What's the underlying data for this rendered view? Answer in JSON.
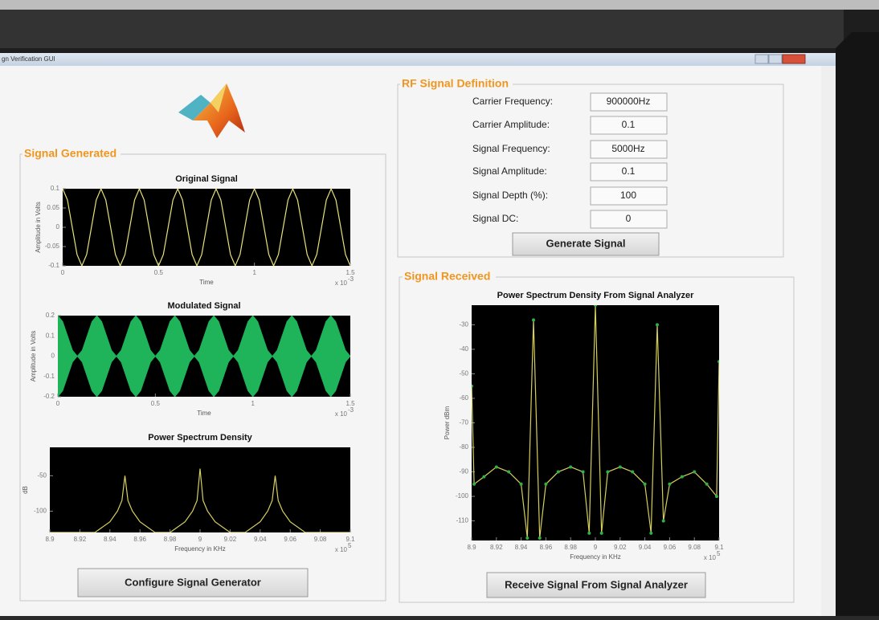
{
  "window_title": "gn Verification GUI",
  "rf_panel": {
    "title": "RF Signal Definition",
    "fields": [
      {
        "label": "Carrier Frequency:",
        "value": "900000Hz"
      },
      {
        "label": "Carrier Amplitude:",
        "value": "0.1"
      },
      {
        "label": "Signal Frequency:",
        "value": "5000Hz"
      },
      {
        "label": "Signal Amplitude:",
        "value": "0.1"
      },
      {
        "label": "Signal Depth (%):",
        "value": "100"
      },
      {
        "label": "Signal DC:",
        "value": "0"
      }
    ],
    "button": "Generate Signal"
  },
  "generated_panel": {
    "title": "Signal Generated",
    "button": "Configure Signal Generator"
  },
  "received_panel": {
    "title": "Signal Received",
    "button": "Receive Signal From Signal Analyzer"
  },
  "chart_data": [
    {
      "type": "line",
      "title": "Original Signal",
      "xlabel": "Time",
      "ylabel": "Amplitude in Volts",
      "x_exponent": {
        "base": "x 10",
        "power": "-3"
      },
      "xlim": [
        0,
        1.5
      ],
      "ylim": [
        -0.1,
        0.1
      ],
      "xticks": [
        0,
        0.5,
        1,
        1.5
      ],
      "yticks": [
        0.1,
        0.05,
        0,
        -0.05,
        -0.1
      ],
      "x": [
        0,
        0.025,
        0.05,
        0.075,
        0.1,
        0.125,
        0.15,
        0.175,
        0.2,
        0.225,
        0.25,
        0.275,
        0.3,
        0.325,
        0.35,
        0.375,
        0.4,
        0.425,
        0.45,
        0.475,
        0.5,
        0.525,
        0.55,
        0.575,
        0.6,
        0.625,
        0.65,
        0.675,
        0.7,
        0.725,
        0.75,
        0.775,
        0.8,
        0.825,
        0.85,
        0.875,
        0.9,
        0.925,
        0.95,
        0.975,
        1,
        1.025,
        1.05,
        1.075,
        1.1,
        1.125,
        1.15,
        1.175,
        1.2,
        1.225,
        1.25,
        1.275,
        1.3,
        1.325,
        1.35,
        1.375,
        1.4,
        1.425,
        1.45,
        1.475,
        1.5
      ],
      "series": [
        {
          "color": "#e8e27a",
          "values": [
            0.1,
            0.0707,
            0,
            -0.0707,
            -0.1,
            -0.0707,
            0,
            0.0707,
            0.1,
            0.0707,
            0,
            -0.0707,
            -0.1,
            -0.0707,
            0,
            0.0707,
            0.1,
            0.0707,
            0,
            -0.0707,
            -0.1,
            -0.0707,
            0,
            0.0707,
            0.1,
            0.0707,
            0,
            -0.0707,
            -0.1,
            -0.0707,
            0,
            0.0707,
            0.1,
            0.0707,
            0,
            -0.0707,
            -0.1,
            -0.0707,
            0,
            0.0707,
            0.1,
            0.0707,
            0,
            -0.0707,
            -0.1,
            -0.0707,
            0,
            0.0707,
            0.1,
            0.0707,
            0,
            -0.0707,
            -0.1,
            -0.0707,
            0,
            0.0707,
            0.1,
            0.0707,
            0,
            -0.0707,
            -0.1
          ]
        }
      ]
    },
    {
      "type": "area",
      "title": "Modulated Signal",
      "xlabel": "Time",
      "ylabel": "Amplitude in Volts",
      "x_exponent": {
        "base": "x 10",
        "power": "-3"
      },
      "xlim": [
        0,
        1.5
      ],
      "ylim": [
        -0.2,
        0.2
      ],
      "xticks": [
        0,
        0.5,
        1,
        1.5
      ],
      "yticks": [
        0.2,
        0.1,
        0,
        -0.1,
        -0.2
      ],
      "x": [
        0,
        0.025,
        0.05,
        0.075,
        0.1,
        0.125,
        0.15,
        0.175,
        0.2,
        0.225,
        0.25,
        0.275,
        0.3,
        0.325,
        0.35,
        0.375,
        0.4,
        0.425,
        0.45,
        0.475,
        0.5,
        0.525,
        0.55,
        0.575,
        0.6,
        0.625,
        0.65,
        0.675,
        0.7,
        0.725,
        0.75,
        0.775,
        0.8,
        0.825,
        0.85,
        0.875,
        0.9,
        0.925,
        0.95,
        0.975,
        1,
        1.025,
        1.05,
        1.075,
        1.1,
        1.125,
        1.15,
        1.175,
        1.2,
        1.225,
        1.25,
        1.275,
        1.3,
        1.325,
        1.35,
        1.375,
        1.4,
        1.425,
        1.45,
        1.475,
        1.5
      ],
      "series": [
        {
          "color": "#1fb35a",
          "values": [
            0.2,
            0.1707,
            0.1,
            0.0293,
            0,
            0.0293,
            0.1,
            0.1707,
            0.2,
            0.1707,
            0.1,
            0.0293,
            0,
            0.0293,
            0.1,
            0.1707,
            0.2,
            0.1707,
            0.1,
            0.0293,
            0,
            0.0293,
            0.1,
            0.1707,
            0.2,
            0.1707,
            0.1,
            0.0293,
            0,
            0.0293,
            0.1,
            0.1707,
            0.2,
            0.1707,
            0.1,
            0.0293,
            0,
            0.0293,
            0.1,
            0.1707,
            0.2,
            0.1707,
            0.1,
            0.0293,
            0,
            0.0293,
            0.1,
            0.1707,
            0.2,
            0.1707,
            0.1,
            0.0293,
            0,
            0.0293,
            0.1,
            0.1707,
            0.2,
            0.1707,
            0.1,
            0.0293,
            0
          ]
        },
        {
          "color": "#1fb35a",
          "values": [
            -0.2,
            -0.1707,
            -0.1,
            -0.0293,
            0,
            -0.0293,
            -0.1,
            -0.1707,
            -0.2,
            -0.1707,
            -0.1,
            -0.0293,
            0,
            -0.0293,
            -0.1,
            -0.1707,
            -0.2,
            -0.1707,
            -0.1,
            -0.0293,
            0,
            -0.0293,
            -0.1,
            -0.1707,
            -0.2,
            -0.1707,
            -0.1,
            -0.0293,
            0,
            -0.0293,
            -0.1,
            -0.1707,
            -0.2,
            -0.1707,
            -0.1,
            -0.0293,
            0,
            -0.0293,
            -0.1,
            -0.1707,
            -0.2,
            -0.1707,
            -0.1,
            -0.0293,
            0,
            -0.0293,
            -0.1,
            -0.1707,
            -0.2,
            -0.1707,
            -0.1,
            -0.0293,
            0,
            -0.0293,
            -0.1,
            -0.1707,
            -0.2,
            -0.1707,
            -0.1,
            -0.0293,
            0
          ]
        }
      ]
    },
    {
      "type": "line",
      "title": "Power Spectrum Density",
      "xlabel": "Frequency in KHz",
      "ylabel": "dB",
      "x_exponent": {
        "base": "x 10",
        "power": "5"
      },
      "xlim": [
        8.9,
        9.1
      ],
      "ylim": [
        -130,
        -10
      ],
      "xticks": [
        8.9,
        8.92,
        8.94,
        8.96,
        8.98,
        9,
        9.02,
        9.04,
        9.06,
        9.08,
        9.1
      ],
      "yticks": [
        -50,
        -100
      ],
      "x": [
        8.9,
        8.93,
        8.94,
        8.945,
        8.948,
        8.95,
        8.952,
        8.955,
        8.96,
        8.97,
        8.98,
        8.99,
        8.995,
        8.998,
        9,
        9.002,
        9.005,
        9.01,
        9.02,
        9.03,
        9.04,
        9.045,
        9.048,
        9.05,
        9.052,
        9.055,
        9.06,
        9.07,
        9.1
      ],
      "series": [
        {
          "color": "#d8d060",
          "values": [
            -130,
            -130,
            -115,
            -100,
            -85,
            -50,
            -85,
            -100,
            -115,
            -130,
            -130,
            -115,
            -100,
            -85,
            -40,
            -85,
            -100,
            -115,
            -130,
            -130,
            -115,
            -100,
            -85,
            -50,
            -85,
            -100,
            -115,
            -130,
            -130
          ]
        }
      ]
    },
    {
      "type": "line",
      "title": "Power Spectrum Density From Signal Analyzer",
      "xlabel": "Frequency in KHz",
      "ylabel": "Power dBm",
      "x_exponent": {
        "base": "x 10",
        "power": "5"
      },
      "xlim": [
        8.9,
        9.1
      ],
      "ylim": [
        -118,
        -22
      ],
      "xticks": [
        8.9,
        8.92,
        8.94,
        8.96,
        8.98,
        9,
        9.02,
        9.04,
        9.06,
        9.08,
        9.1
      ],
      "yticks": [
        -30,
        -40,
        -50,
        -60,
        -70,
        -80,
        -90,
        -100,
        -110
      ],
      "marker_color": "#2fb04a",
      "x": [
        8.9,
        8.902,
        8.91,
        8.92,
        8.93,
        8.94,
        8.945,
        8.95,
        8.955,
        8.96,
        8.97,
        8.98,
        8.99,
        8.995,
        9,
        9.005,
        9.01,
        9.02,
        9.03,
        9.04,
        9.045,
        9.05,
        9.055,
        9.06,
        9.07,
        9.08,
        9.09,
        9.098,
        9.1
      ],
      "series": [
        {
          "color": "#d4cf5a",
          "values": [
            -55,
            -95,
            -92,
            -88,
            -90,
            -95,
            -117,
            -28,
            -117,
            -95,
            -90,
            -88,
            -90,
            -115,
            -22,
            -115,
            -90,
            -88,
            -90,
            -95,
            -115,
            -30,
            -110,
            -95,
            -92,
            -90,
            -95,
            -100,
            -45
          ]
        }
      ]
    }
  ]
}
